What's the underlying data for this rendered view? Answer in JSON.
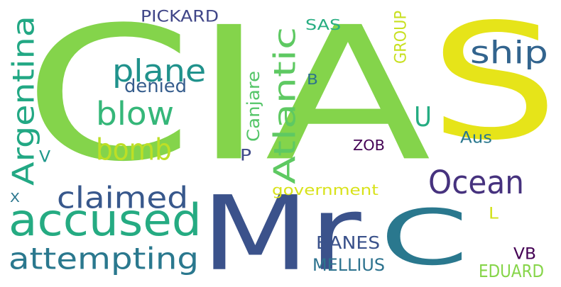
{
  "words": [
    {
      "text": "CIA",
      "color": "#84d44b"
    },
    {
      "text": "S",
      "color": "#e6e419"
    },
    {
      "text": "Mr",
      "color": "#3b528b"
    },
    {
      "text": "C",
      "color": "#2a788e"
    },
    {
      "text": "accused",
      "color": "#25ab82"
    },
    {
      "text": "attempting",
      "color": "#2a788e"
    },
    {
      "text": "claimed",
      "color": "#38588c"
    },
    {
      "text": "Argentina",
      "color": "#22a884"
    },
    {
      "text": "plane",
      "color": "#20928c"
    },
    {
      "text": "blow",
      "color": "#35b779"
    },
    {
      "text": "bomb",
      "color": "#bddf26"
    },
    {
      "text": "ship",
      "color": "#32648e"
    },
    {
      "text": "Atlantic",
      "color": "#5ec962"
    },
    {
      "text": "Ocean",
      "color": "#46327e"
    },
    {
      "text": "U",
      "color": "#25ac82"
    },
    {
      "text": "PICKARD",
      "color": "#404688"
    },
    {
      "text": "SAS",
      "color": "#27ad81"
    },
    {
      "text": "GROUP",
      "color": "#c8e020"
    },
    {
      "text": "denied",
      "color": "#365d8d"
    },
    {
      "text": "Canjare",
      "color": "#54c568"
    },
    {
      "text": "B",
      "color": "#2c728e"
    },
    {
      "text": "Aus",
      "color": "#2a788e"
    },
    {
      "text": "ZOB",
      "color": "#440154"
    },
    {
      "text": "P",
      "color": "#3e4989"
    },
    {
      "text": "V",
      "color": "#1f988b"
    },
    {
      "text": "X",
      "color": "#2a768e"
    },
    {
      "text": "government",
      "color": "#d8e219"
    },
    {
      "text": "L",
      "color": "#d2e21b"
    },
    {
      "text": "BANES",
      "color": "#3b528b"
    },
    {
      "text": "MELLIUS",
      "color": "#2c728e"
    },
    {
      "text": "VB",
      "color": "#440154"
    },
    {
      "text": "EDUARD",
      "color": "#86d549"
    }
  ]
}
